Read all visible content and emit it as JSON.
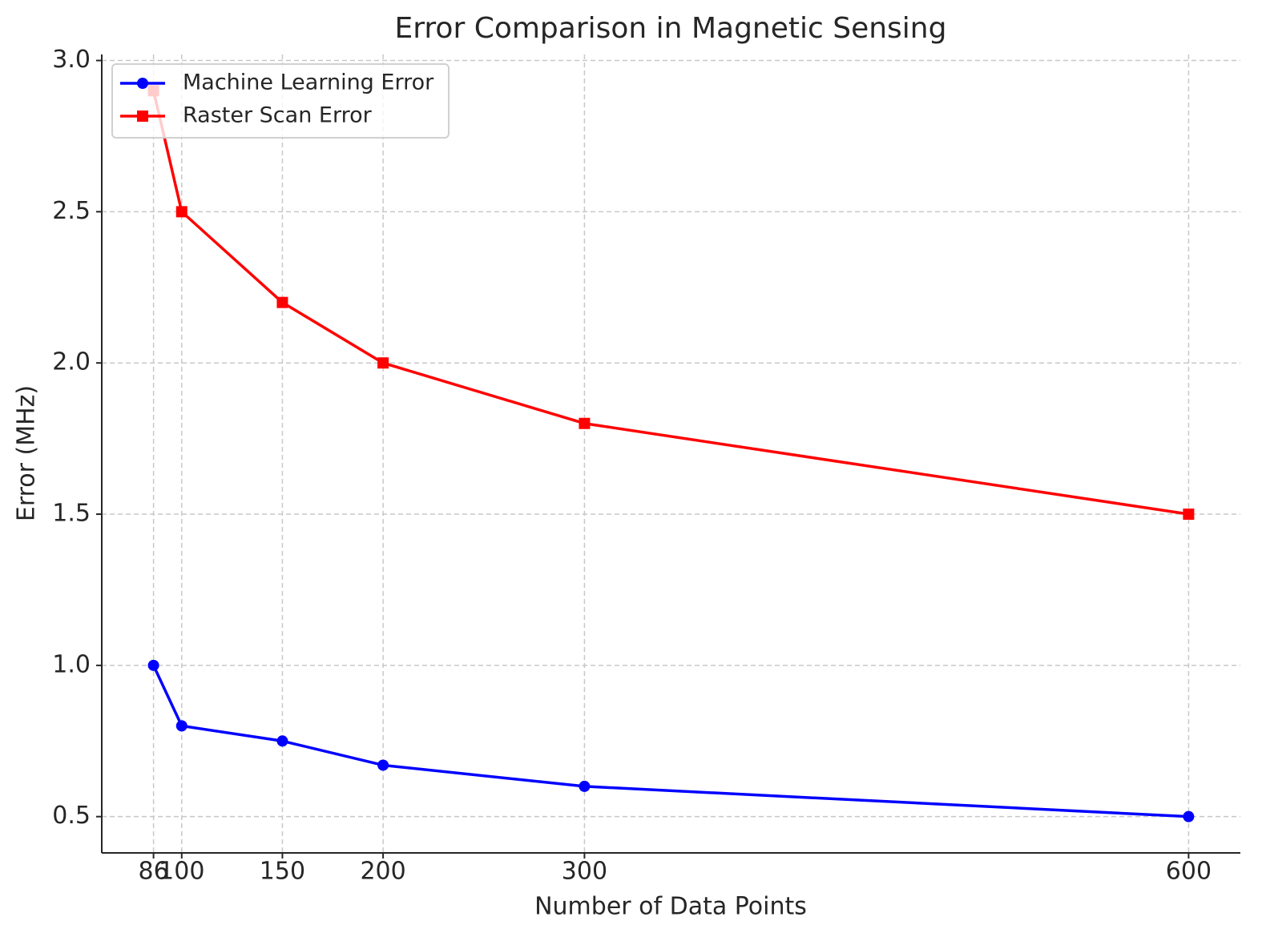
{
  "chart_data": {
    "type": "line",
    "title": "Error Comparison in Magnetic Sensing",
    "x_label": "Number of Data Points",
    "y_label": "Error (MHz)",
    "x": [
      86,
      100,
      150,
      200,
      300,
      600
    ],
    "series": [
      {
        "name": "Machine Learning Error",
        "color": "#0000ff",
        "marker": "circle",
        "values": [
          1.0,
          0.8,
          0.75,
          0.67,
          0.6,
          0.5
        ]
      },
      {
        "name": "Raster Scan Error",
        "color": "#ff0000",
        "marker": "square",
        "values": [
          2.9,
          2.5,
          2.2,
          2.0,
          1.8,
          1.5
        ]
      }
    ],
    "xlim": [
      60.3,
      625.7
    ],
    "ylim": [
      0.38,
      3.02
    ],
    "xticks": [
      86,
      100,
      150,
      200,
      300,
      600
    ],
    "yticks": [
      0.5,
      {
        "value": 1,
        "label": "1.0"
      },
      1.5,
      {
        "value": 2,
        "label": "2.0"
      },
      2.5,
      {
        "value": 3,
        "label": "3.0"
      }
    ],
    "grid": true,
    "legend": "upper-left"
  }
}
